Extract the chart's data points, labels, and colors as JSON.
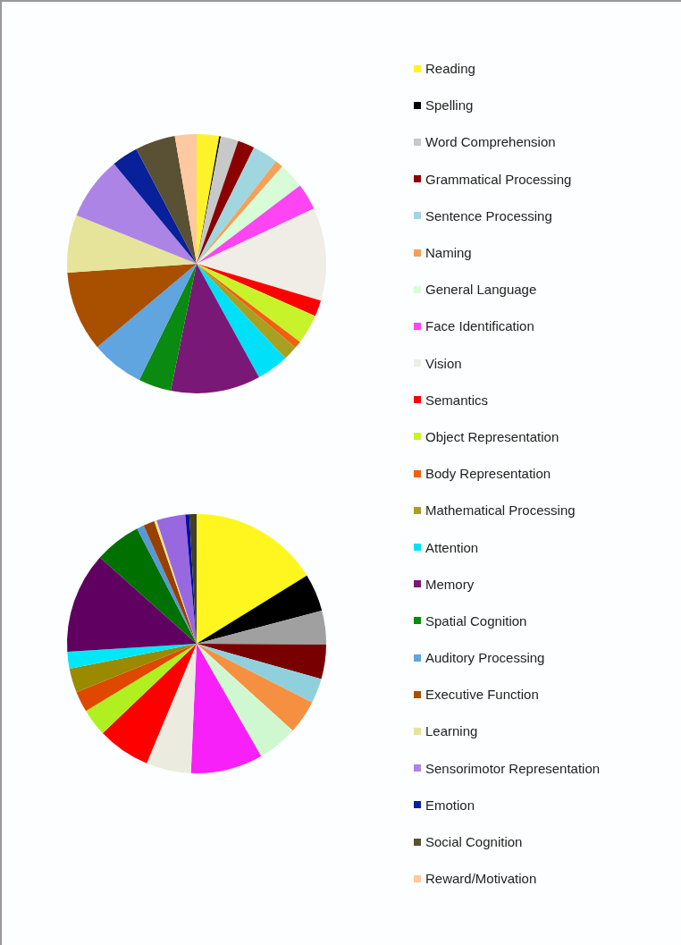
{
  "chart_data": [
    {
      "type": "pie",
      "legend": "right",
      "categories": [
        "Reading",
        "Spelling",
        "Word Comprehension",
        "Grammatical Processing",
        "Sentence Processing",
        "Naming",
        "General Language",
        "Face Identification",
        "Vision",
        "Semantics",
        "Object Representation",
        "Body Representation",
        "Mathematical Processing",
        "Attention",
        "Memory",
        "Spatial Cognition",
        "Auditory Processing",
        "Executive Function",
        "Learning",
        "Sensorimotor Representation",
        "Emotion",
        "Social Cognition",
        "Reward/Motivation"
      ],
      "values": [
        2.8,
        0.2,
        2.2,
        2.1,
        3.2,
        1.0,
        3.2,
        3.3,
        11.6,
        2.0,
        3.7,
        0.9,
        1.8,
        4.0,
        11.2,
        4.1,
        6.6,
        10.0,
        7.2,
        7.9,
        3.3,
        5.0,
        2.7
      ],
      "colors": [
        "#fff22a",
        "#000000",
        "#c8c8c8",
        "#8b0000",
        "#9fd6e0",
        "#f5a05a",
        "#d8fcd8",
        "#ff44f4",
        "#f0ede6",
        "#ff0000",
        "#c8f22a",
        "#f06010",
        "#a8a020",
        "#00e0f8",
        "#7a1878",
        "#0a8a10",
        "#60a4e0",
        "#a85000",
        "#e6e49a",
        "#ac84e6",
        "#08209a",
        "#5a5034",
        "#fec8a0"
      ]
    },
    {
      "type": "pie",
      "legend": false,
      "categories": [
        null,
        null,
        null,
        null,
        null,
        null,
        null,
        null,
        null,
        null,
        null,
        null,
        null,
        null,
        null,
        null,
        null,
        null,
        null,
        null,
        null,
        null,
        null
      ],
      "values": [
        16.2,
        4.7,
        4.2,
        4.3,
        3.1,
        4.2,
        5.0,
        9.0,
        5.6,
        6.6,
        3.4,
        2.6,
        3.0,
        2.1,
        12.6,
        5.8,
        0.9,
        1.4,
        0.3,
        3.6,
        0.5,
        0.9,
        0
      ],
      "colors": [
        "#fff620",
        "#000000",
        "#a0a0a0",
        "#780000",
        "#90d0dc",
        "#f59040",
        "#d0f8d0",
        "#f820f8",
        "#ecebe0",
        "#ff0000",
        "#b0f020",
        "#e04800",
        "#9a8a00",
        "#00e8f8",
        "#600060",
        "#007000",
        "#5898d8",
        "#984000",
        "#f0e890",
        "#9868e0",
        "#0010a0",
        "#404028",
        "#fec8a0"
      ]
    }
  ]
}
